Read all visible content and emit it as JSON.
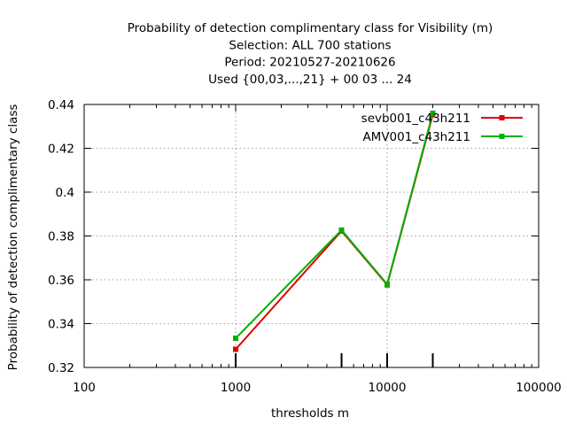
{
  "chart_data": {
    "type": "line",
    "title_lines": [
      "Probability of detection complimentary class  for Visibility (m)",
      "Selection: ALL    700 stations",
      "Period: 20210527-20210626",
      "Used {00,03,...,21} + 00 03 ... 24"
    ],
    "xlabel": "thresholds m",
    "ylabel": "Probability of detection complimentary class",
    "x_scale": "log",
    "xlim": [
      100,
      100000
    ],
    "ylim": [
      0.32,
      0.44
    ],
    "x_ticks": [
      100,
      1000,
      10000,
      100000
    ],
    "x_tick_labels": [
      "100",
      "1000",
      "10000",
      "100000"
    ],
    "y_ticks": [
      0.32,
      0.34,
      0.36,
      0.38,
      0.4,
      0.42,
      0.44
    ],
    "y_tick_labels": [
      "0.32",
      "0.34",
      "0.36",
      "0.38",
      "0.4",
      "0.42",
      "0.44"
    ],
    "grid": true,
    "legend_position": "top-right",
    "series": [
      {
        "name": "sevb001_c43h211",
        "color": "#e00000",
        "x": [
          1000,
          5000,
          10000,
          20000
        ],
        "y": [
          0.3283,
          0.3823,
          0.3577,
          0.4353
        ]
      },
      {
        "name": "AMV001_c43h211",
        "color": "#00b000",
        "x": [
          1000,
          5000,
          10000,
          20000
        ],
        "y": [
          0.3333,
          0.3827,
          0.358,
          0.436
        ]
      }
    ],
    "sample_marks_x": [
      1000,
      5000,
      10000,
      20000
    ]
  }
}
